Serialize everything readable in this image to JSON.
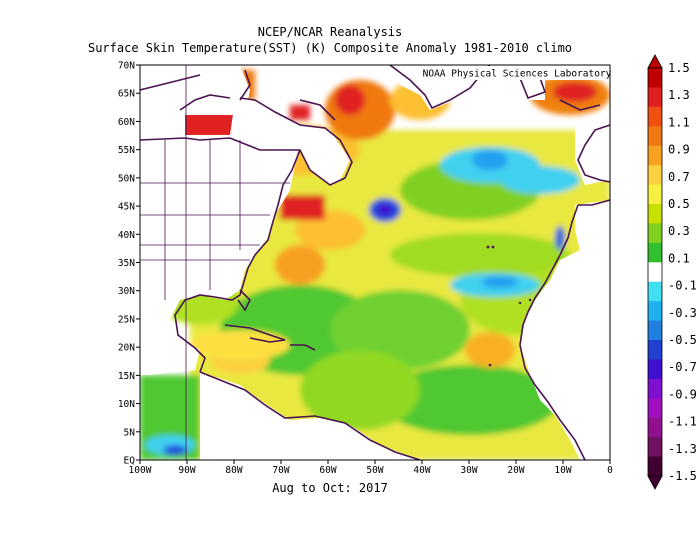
{
  "title": {
    "line1": "NCEP/NCAR Reanalysis",
    "line2": "Surface Skin Temperature(SST) (K) Composite Anomaly 1981-2010 climo",
    "period": "Aug to Oct: 2017"
  },
  "credit": "NOAA Physical Sciences Laboratory",
  "axes": {
    "lon_ticks": [
      "100W",
      "90W",
      "80W",
      "70W",
      "60W",
      "50W",
      "40W",
      "30W",
      "20W",
      "10W",
      "0"
    ],
    "lat_ticks": [
      "70N",
      "65N",
      "60N",
      "55N",
      "50N",
      "45N",
      "40N",
      "35N",
      "30N",
      "25N",
      "20N",
      "15N",
      "10N",
      "5N",
      "EQ"
    ]
  },
  "colorbar": {
    "labels": [
      "1.5",
      "1.3",
      "1.1",
      "0.9",
      "0.7",
      "0.5",
      "0.3",
      "0.1",
      "-0.1",
      "-0.3",
      "-0.5",
      "-0.7",
      "-0.9",
      "-1.1",
      "-1.3",
      "-1.5"
    ],
    "colors": [
      "#c00000",
      "#e02020",
      "#f05010",
      "#f07810",
      "#f8a020",
      "#fcd040",
      "#f8f040",
      "#c8e000",
      "#80d020",
      "#30c030",
      "#ffffff",
      "#40e0f0",
      "#20b0f0",
      "#2080e0",
      "#2040d0",
      "#4010d0",
      "#8010d0",
      "#a010c0",
      "#901090",
      "#701060",
      "#400030"
    ]
  },
  "legend_range": {
    "min": -1.5,
    "max": 1.5,
    "unit": "K"
  },
  "map_extent": {
    "lon_min": -100,
    "lon_max": 0,
    "lat_min": 0,
    "lat_max": 70
  }
}
